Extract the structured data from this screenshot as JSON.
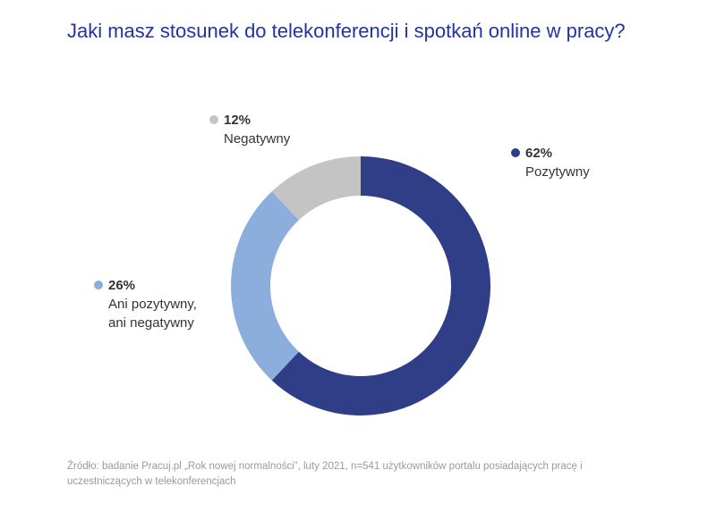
{
  "title": "Jaki masz stosunek do telekonferencji i spotkań online w pracy?",
  "chart_data": {
    "type": "pie",
    "donut": true,
    "title": "Jaki masz stosunek do telekonferencji i spotkań online w pracy?",
    "slices": [
      {
        "label": "Pozytywny",
        "value": 62,
        "value_label": "62%",
        "color": "#2f3e87"
      },
      {
        "label": "Ani pozytywny, ani negatywny",
        "label_lines": [
          "Ani pozytywny,",
          "ani negatywny"
        ],
        "value": 26,
        "value_label": "26%",
        "color": "#8baedd"
      },
      {
        "label": "Negatywny",
        "value": 12,
        "value_label": "12%",
        "color": "#c4c4c4"
      }
    ],
    "start": "top",
    "direction": "clockwise"
  },
  "source": "Źródło: badanie Pracuj.pl „Rok nowej normalności”, luty 2021, n=541 użytkowników portalu posiadających pracę i uczestniczących w telekonferencjach"
}
